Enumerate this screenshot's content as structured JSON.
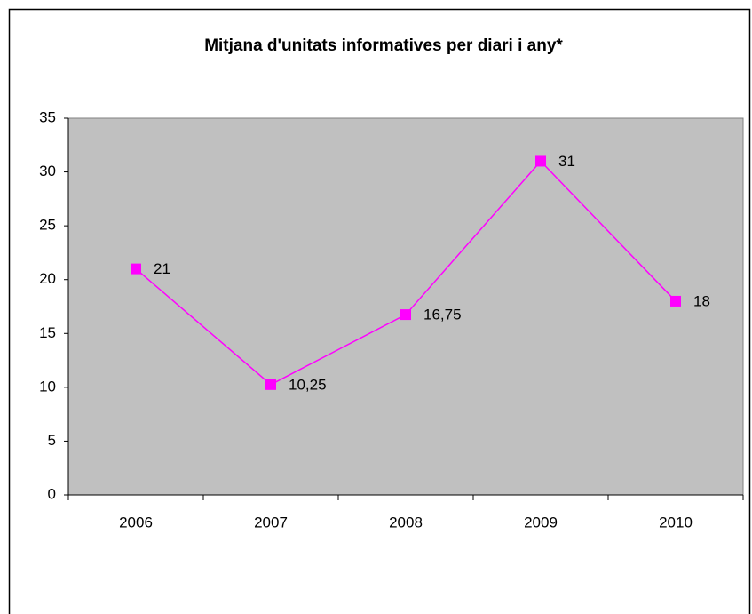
{
  "chart_data": {
    "type": "line",
    "title": "Mitjana d'unitats informatives per diari i any*",
    "categories": [
      "2006",
      "2007",
      "2008",
      "2009",
      "2010"
    ],
    "series": [
      {
        "name": "Mitjana",
        "color": "#ff00ff",
        "values": [
          21,
          10.25,
          16.75,
          31,
          18
        ],
        "value_labels": [
          "21",
          "10,25",
          "16,75",
          "31",
          "18"
        ]
      }
    ],
    "ylim": [
      0,
      35
    ],
    "yticks": [
      0,
      5,
      10,
      15,
      20,
      25,
      30,
      35
    ],
    "grid": false,
    "legend": false
  }
}
